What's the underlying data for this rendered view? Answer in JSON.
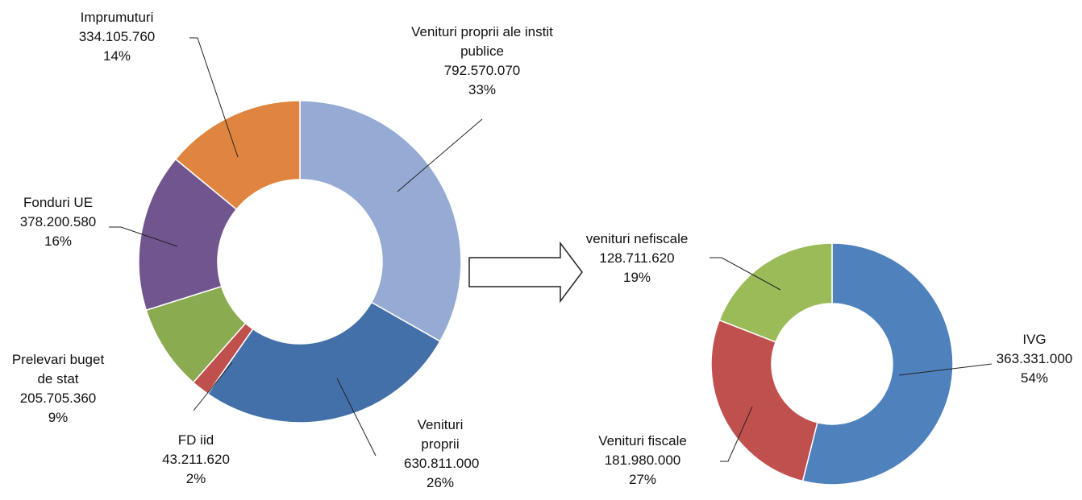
{
  "chart_data": [
    {
      "type": "donut",
      "categories": [
        "Venituri proprii ale instit publice",
        "Venituri proprii",
        "FD iid",
        "Prelevari buget de stat",
        "Fonduri UE",
        "Imprumuturi"
      ],
      "values": [
        792570070,
        630811000,
        43211620,
        205705360,
        378200580,
        334105760
      ],
      "value_labels": [
        "792.570.070",
        "630.811.000",
        "43.211.620",
        "205.705.360",
        "378.200.580",
        "334.105.760"
      ],
      "percents": [
        33,
        26,
        2,
        9,
        16,
        14
      ],
      "percent_labels": [
        "33%",
        "26%",
        "2%",
        "9%",
        "16%",
        "14%"
      ],
      "colors": [
        "#95abd4",
        "#4370a8",
        "#c0504d",
        "#8aab4f",
        "#70558f",
        "#e0853f"
      ]
    },
    {
      "type": "donut",
      "categories": [
        "IVG",
        "Venituri fiscale",
        "venituri nefiscale"
      ],
      "values": [
        363331000,
        181980000,
        128711620
      ],
      "value_labels": [
        "363.331.000",
        "181.980.000",
        "128.711.620"
      ],
      "percents": [
        54,
        27,
        19
      ],
      "percent_labels": [
        "54%",
        "27%",
        "19%"
      ],
      "colors": [
        "#4f81bd",
        "#c0504d",
        "#9bbb59"
      ]
    }
  ]
}
